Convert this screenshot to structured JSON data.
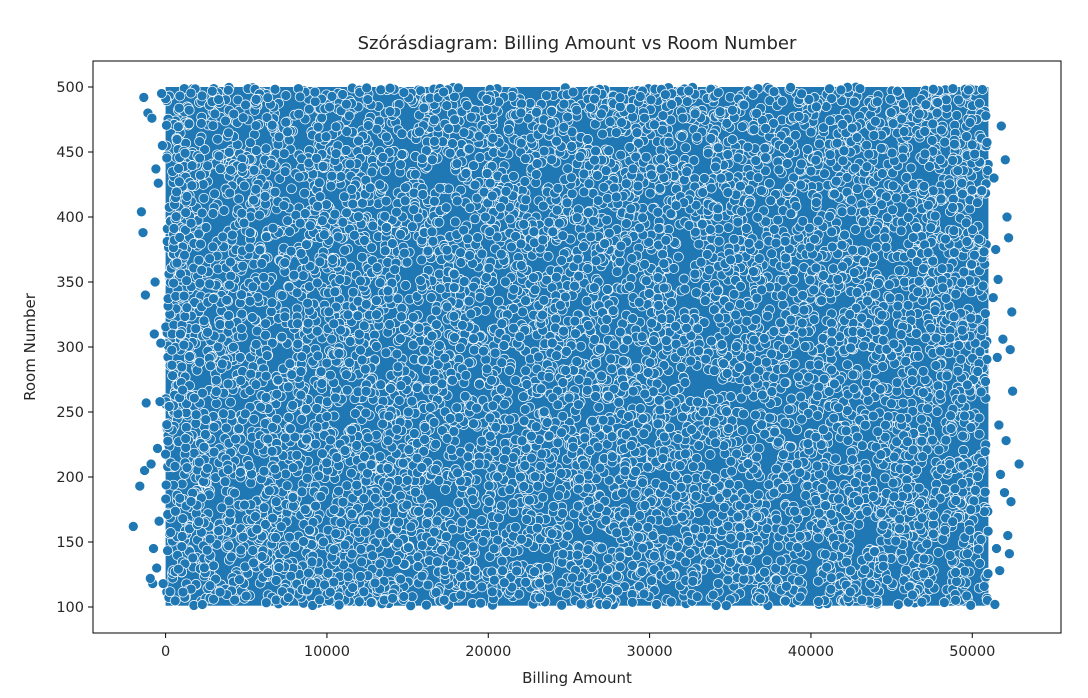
{
  "chart_data": {
    "type": "scatter",
    "title": "Szórásdiagram: Billing Amount vs Room Number",
    "xlabel": "Billing Amount",
    "ylabel": "Room Number",
    "xlim": [
      -4500,
      55500
    ],
    "ylim": [
      80,
      520
    ],
    "x_ticks": [
      0,
      10000,
      20000,
      30000,
      40000,
      50000
    ],
    "y_ticks": [
      100,
      150,
      200,
      250,
      300,
      350,
      400,
      450,
      500
    ],
    "grid": false,
    "legend": "none",
    "marker_color": "#1f77b4",
    "marker_edge_color": "#ffffff",
    "bulk_region": {
      "x_range": [
        0,
        51000
      ],
      "y_range": [
        101,
        500
      ]
    },
    "points": [
      [
        -2000,
        162
      ],
      [
        -1600,
        193
      ],
      [
        -1500,
        404
      ],
      [
        -1400,
        388
      ],
      [
        -1350,
        492
      ],
      [
        -1300,
        205
      ],
      [
        -1250,
        340
      ],
      [
        -1200,
        257
      ],
      [
        -1100,
        480
      ],
      [
        -900,
        210
      ],
      [
        -850,
        476
      ],
      [
        -800,
        118
      ],
      [
        -750,
        145
      ],
      [
        -700,
        310
      ],
      [
        -600,
        437
      ],
      [
        -500,
        222
      ],
      [
        -450,
        426
      ],
      [
        -400,
        166
      ],
      [
        -350,
        258
      ],
      [
        -300,
        303
      ],
      [
        -250,
        495
      ],
      [
        -200,
        455
      ],
      [
        -150,
        118
      ],
      [
        51600,
        352
      ],
      [
        51700,
        128
      ],
      [
        51800,
        470
      ],
      [
        51900,
        306
      ],
      [
        52000,
        188
      ],
      [
        52050,
        444
      ],
      [
        52100,
        228
      ],
      [
        52150,
        400
      ],
      [
        52200,
        155
      ],
      [
        52250,
        384
      ],
      [
        52300,
        141
      ],
      [
        52350,
        298
      ],
      [
        52400,
        181
      ],
      [
        52450,
        327
      ],
      [
        52500,
        266
      ],
      [
        52900,
        210
      ],
      [
        51400,
        102
      ],
      [
        51500,
        145
      ],
      [
        51450,
        375
      ],
      [
        51550,
        292
      ],
      [
        51650,
        240
      ],
      [
        51750,
        202
      ],
      [
        51350,
        430
      ],
      [
        51300,
        338
      ],
      [
        -650,
        350
      ],
      [
        -550,
        130
      ],
      [
        -950,
        122
      ]
    ]
  }
}
